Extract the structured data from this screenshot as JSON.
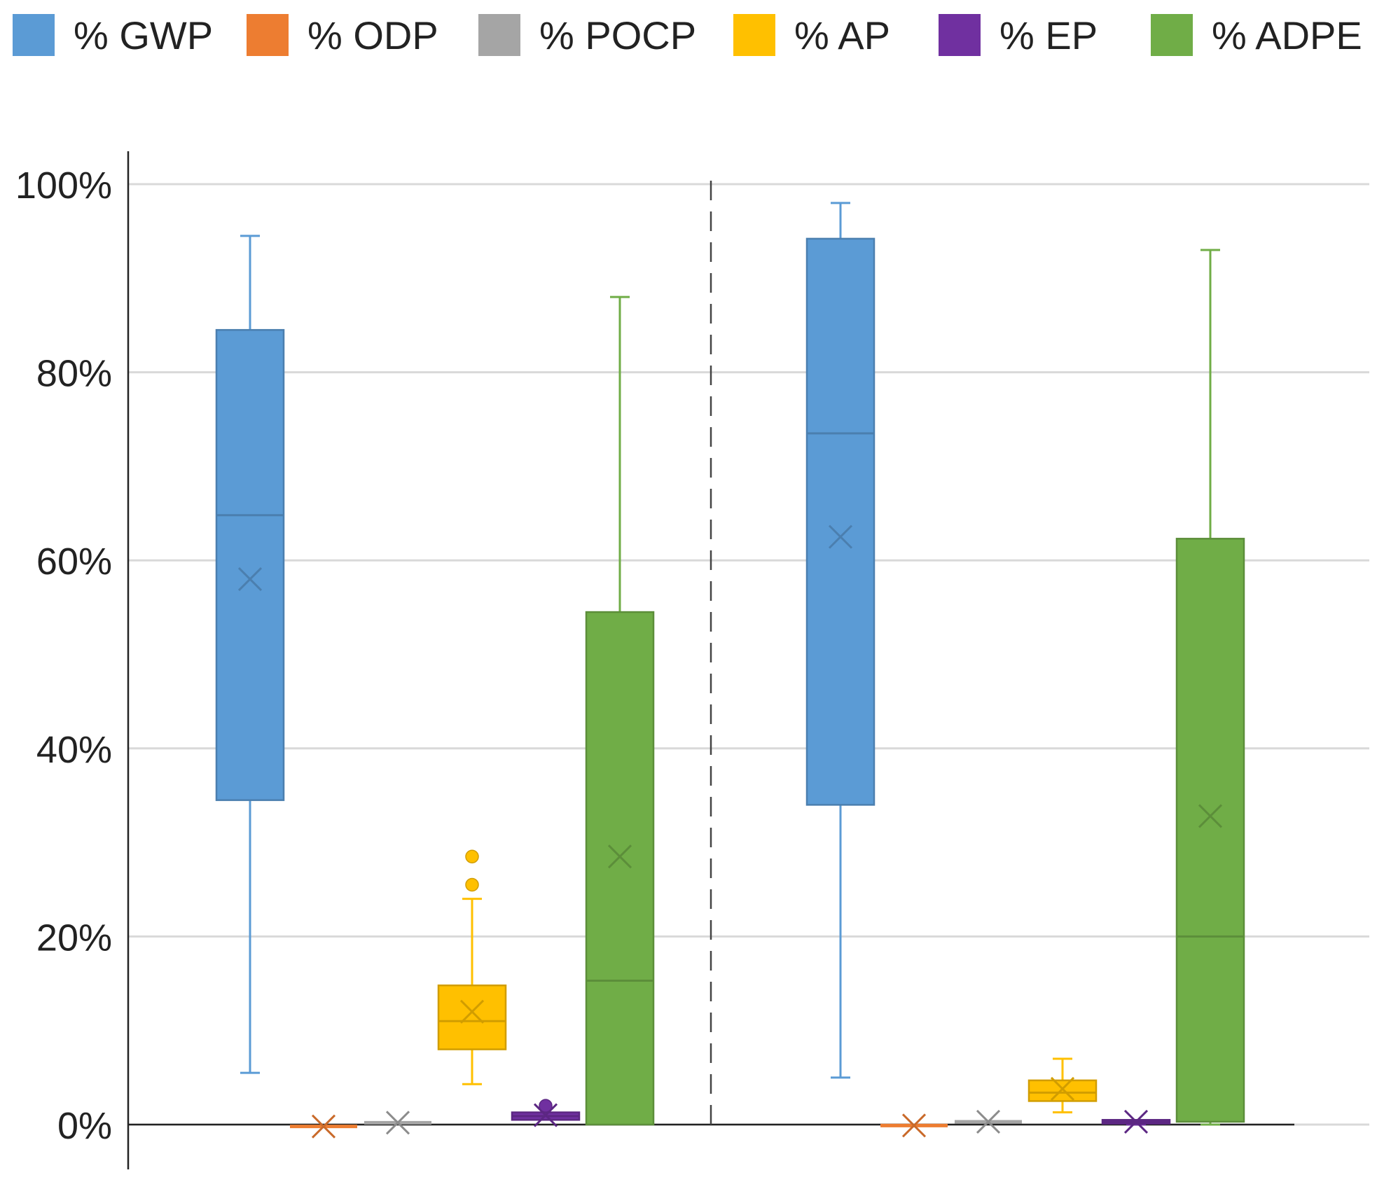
{
  "chart_data": {
    "type": "box",
    "title": "",
    "xlabel": "",
    "ylabel": "",
    "ylim": [
      0,
      100
    ],
    "y_ticks": [
      "0%",
      "20%",
      "40%",
      "60%",
      "80%",
      "100%"
    ],
    "y_tick_values": [
      0,
      20,
      40,
      60,
      80,
      100
    ],
    "grid": true,
    "legend_position": "top",
    "separator": "dashed vertical line between the two groups",
    "series": [
      {
        "name": "% GWP",
        "color": "#5B9BD5"
      },
      {
        "name": "% ODP",
        "color": "#ED7D31"
      },
      {
        "name": "% POCP",
        "color": "#A5A5A5"
      },
      {
        "name": "% AP",
        "color": "#FFC000"
      },
      {
        "name": "% EP",
        "color": "#7030A0"
      },
      {
        "name": "% ADPE",
        "color": "#70AD47"
      }
    ],
    "groups": [
      {
        "boxes": [
          {
            "series": "% GWP",
            "min": 5.5,
            "q1": 34.5,
            "median": 64.8,
            "q3": 84.5,
            "max": 94.5,
            "mean": 58.0,
            "outliers": []
          },
          {
            "series": "% ODP",
            "min": -0.2,
            "q1": -0.2,
            "median": -0.2,
            "q3": -0.2,
            "max": -0.2,
            "mean": -0.2,
            "outliers": []
          },
          {
            "series": "% POCP",
            "min": 0.2,
            "q1": 0.2,
            "median": 0.2,
            "q3": 0.2,
            "max": 0.2,
            "mean": 0.2,
            "outliers": []
          },
          {
            "series": "% AP",
            "min": 4.3,
            "q1": 8.0,
            "median": 11.0,
            "q3": 14.8,
            "max": 24.0,
            "mean": 12.0,
            "outliers": [
              25.5,
              28.5
            ]
          },
          {
            "series": "% EP",
            "min": 0.5,
            "q1": 0.5,
            "median": 0.9,
            "q3": 1.3,
            "max": 1.3,
            "mean": 1.0,
            "outliers": [
              2.0
            ]
          },
          {
            "series": "% ADPE",
            "min": 0.0,
            "q1": 0.0,
            "median": 15.3,
            "q3": 54.5,
            "max": 88.0,
            "mean": 28.5,
            "outliers": []
          }
        ]
      },
      {
        "boxes": [
          {
            "series": "% GWP",
            "min": 5.0,
            "q1": 34.0,
            "median": 73.5,
            "q3": 94.2,
            "max": 98.0,
            "mean": 62.5,
            "outliers": []
          },
          {
            "series": "% ODP",
            "min": -0.1,
            "q1": -0.1,
            "median": -0.1,
            "q3": -0.1,
            "max": -0.1,
            "mean": -0.1,
            "outliers": []
          },
          {
            "series": "% POCP",
            "min": 0.3,
            "q1": 0.3,
            "median": 0.3,
            "q3": 0.3,
            "max": 0.3,
            "mean": 0.3,
            "outliers": []
          },
          {
            "series": "% AP",
            "min": 1.3,
            "q1": 2.5,
            "median": 3.4,
            "q3": 4.7,
            "max": 7.0,
            "mean": 3.8,
            "outliers": []
          },
          {
            "series": "% EP",
            "min": 0.0,
            "q1": 0.1,
            "median": 0.3,
            "q3": 0.5,
            "max": 0.5,
            "mean": 0.3,
            "outliers": []
          },
          {
            "series": "% ADPE",
            "min": 0.0,
            "q1": 0.3,
            "median": 20.0,
            "q3": 62.3,
            "max": 93.0,
            "mean": 32.8,
            "outliers": []
          }
        ]
      }
    ]
  }
}
